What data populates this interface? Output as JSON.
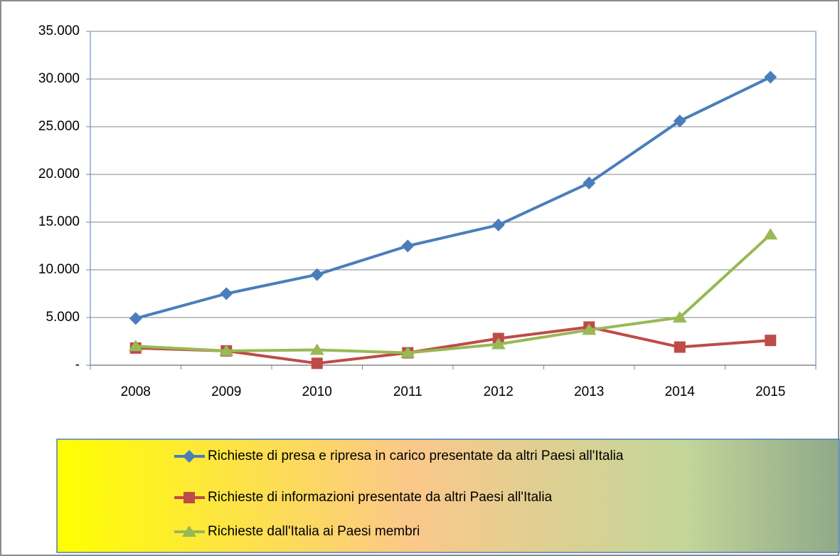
{
  "chart_data": {
    "type": "line",
    "categories": [
      "2008",
      "2009",
      "2010",
      "2011",
      "2012",
      "2013",
      "2014",
      "2015"
    ],
    "series": [
      {
        "name": "Richieste di presa e ripresa in carico presentate da altri Paesi all'Italia",
        "color": "#4a7ebb",
        "marker": "diamond",
        "values": [
          4900,
          7500,
          9500,
          12500,
          14700,
          19100,
          25600,
          30200
        ]
      },
      {
        "name": "Richieste di informazioni presentate  da altri Paesi all'Italia",
        "color": "#be4b48",
        "marker": "square",
        "values": [
          1800,
          1500,
          200,
          1300,
          2800,
          4000,
          1900,
          2600
        ]
      },
      {
        "name": "Richieste dall'Italia ai Paesi membri",
        "color": "#98b954",
        "marker": "triangle",
        "values": [
          2000,
          1500,
          1600,
          1300,
          2200,
          3700,
          5000,
          13700
        ]
      }
    ],
    "ylim": [
      0,
      35000
    ],
    "yticks": [
      {
        "value": 0,
        "label": "-"
      },
      {
        "value": 5000,
        "label": "5.000"
      },
      {
        "value": 10000,
        "label": "10.000"
      },
      {
        "value": 15000,
        "label": "15.000"
      },
      {
        "value": 20000,
        "label": "20.000"
      },
      {
        "value": 25000,
        "label": "25.000"
      },
      {
        "value": 30000,
        "label": "30.000"
      },
      {
        "value": 35000,
        "label": "35.000"
      }
    ],
    "grid": true,
    "legend": "bottom"
  }
}
